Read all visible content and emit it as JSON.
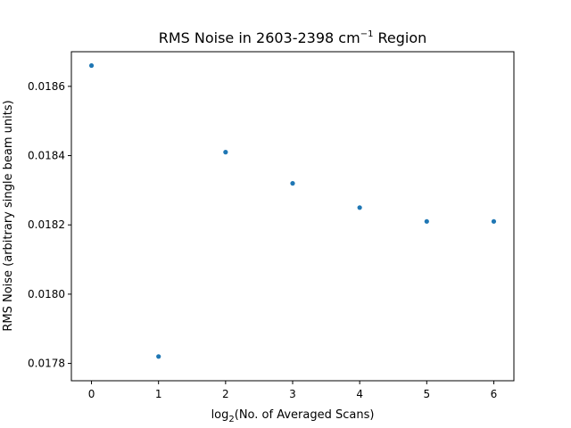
{
  "chart_data": {
    "type": "scatter",
    "title": {
      "main": "RMS Noise in 2603-2398 cm",
      "superscript": "−1",
      "suffix": " Region"
    },
    "xlabel": {
      "prefix": "log",
      "subscript": "2",
      "suffix": "(No. of Averaged Scans)"
    },
    "ylabel": "RMS Noise (arbitrary single beam units)",
    "xlim": [
      -0.3,
      6.3
    ],
    "ylim": [
      0.01775,
      0.0187
    ],
    "xticks": [
      0,
      1,
      2,
      3,
      4,
      5,
      6
    ],
    "xtick_labels": [
      "0",
      "1",
      "2",
      "3",
      "4",
      "5",
      "6"
    ],
    "yticks": [
      0.0178,
      0.018,
      0.0182,
      0.0184,
      0.0186
    ],
    "ytick_labels": [
      "0.0178",
      "0.0180",
      "0.0182",
      "0.0184",
      "0.0186"
    ],
    "grid": false,
    "series": [
      {
        "color": "#1f77b4",
        "x": [
          0,
          1,
          2,
          3,
          4,
          5,
          6
        ],
        "y": [
          0.01866,
          0.01782,
          0.01841,
          0.01832,
          0.01825,
          0.01821,
          0.01821
        ]
      }
    ]
  }
}
